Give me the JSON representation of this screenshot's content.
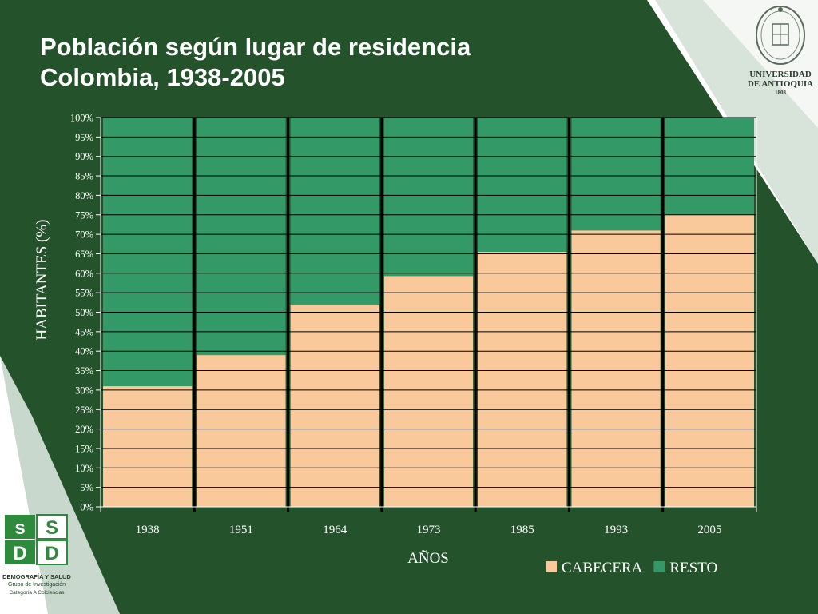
{
  "slide": {
    "title_line1": "Población según lugar de residencia",
    "title_line2": "Colombia, 1938-2005"
  },
  "logos": {
    "university_line1": "UNIVERSIDAD",
    "university_line2": "DE ANTIOQUIA",
    "university_year": "1803",
    "group_line1": "DEMOGRAFÍA Y SALUD",
    "group_line2": "Grupo de Investigación",
    "group_line3": "Categoría A Colciencias"
  },
  "colors": {
    "background": "#24522b",
    "cabecera": "#f9c89b",
    "resto": "#339966",
    "gridline": "#000000"
  },
  "chart_data": {
    "type": "bar",
    "stacked": true,
    "categories": [
      "1938",
      "1951",
      "1964",
      "1973",
      "1985",
      "1993",
      "2005"
    ],
    "series": [
      {
        "name": "CABECERA",
        "color": "#f9c89b",
        "values": [
          31,
          39,
          52,
          59.3,
          65.5,
          71,
          75.1
        ]
      },
      {
        "name": "RESTO",
        "color": "#339966",
        "values": [
          69,
          61,
          48,
          40.7,
          34.5,
          29,
          24.9
        ]
      }
    ],
    "xlabel": "AÑOS",
    "ylabel": "HABITANTES (%)",
    "ylim": [
      0,
      100
    ],
    "ytick_step": 5,
    "ytick_labels": [
      "0%",
      "5%",
      "10%",
      "15%",
      "20%",
      "25%",
      "30%",
      "35%",
      "40%",
      "45%",
      "50%",
      "55%",
      "60%",
      "65%",
      "70%",
      "75%",
      "80%",
      "85%",
      "90%",
      "95%",
      "100%"
    ],
    "grid": true,
    "legend_position": "bottom-right"
  }
}
